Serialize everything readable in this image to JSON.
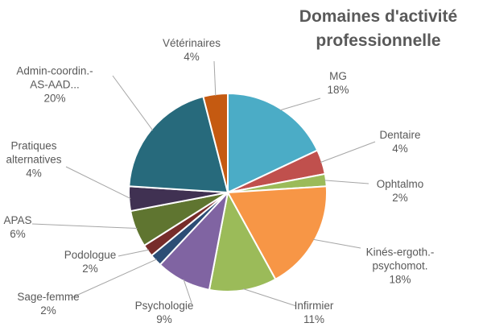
{
  "chart_data": {
    "type": "pie",
    "title": "Domaines d'activité professionnelle",
    "categories": [
      "MG",
      "Dentaire",
      "Ophtalmo",
      "Kinés-ergoth.-\npsychomot.",
      "Infirmier",
      "Psychologie",
      "Sage-femme",
      "Podologue",
      "APAS",
      "Pratiques\nalternatives",
      "Admin-coordin.-\nAS-AAD...",
      "Vétérinaires"
    ],
    "values": [
      18,
      4,
      2,
      18,
      11,
      9,
      2,
      2,
      6,
      4,
      20,
      4
    ],
    "value_labels": [
      "18%",
      "4%",
      "2%",
      "18%",
      "11%",
      "9%",
      "2%",
      "2%",
      "6%",
      "4%",
      "20%",
      "4%"
    ],
    "colors": [
      "#4bacc6",
      "#c0504d",
      "#9bbb59",
      "#f79646",
      "#9bbb59",
      "#8064a2",
      "#2c4d75",
      "#772c2a",
      "#5f7530",
      "#403152",
      "#276a7c",
      "#c55a11"
    ]
  }
}
